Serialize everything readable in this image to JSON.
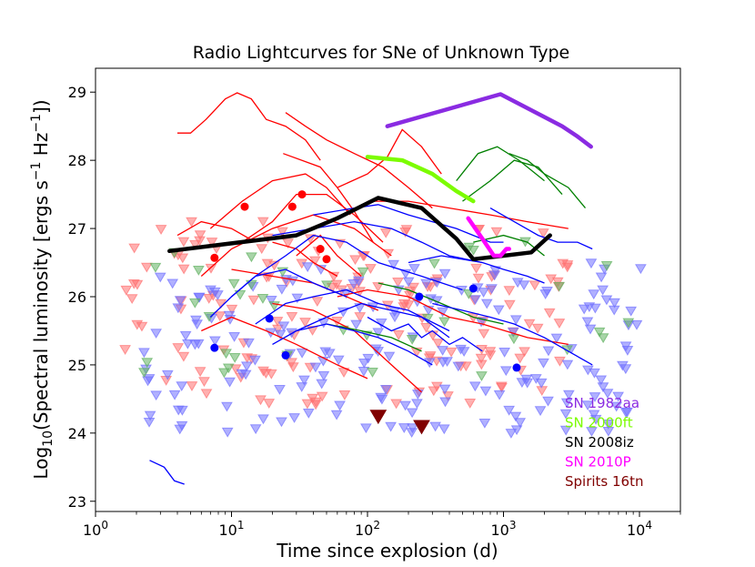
{
  "chart_data": {
    "type": "line",
    "title": "Radio Lightcurves for SNe of Unknown Type",
    "xlabel": "Time since explosion (d)",
    "ylabel_prefix": "Log",
    "ylabel_sub": "10",
    "ylabel_main": "(Spectral luminosity [ergs s",
    "ylabel_sup1": "−1",
    "ylabel_mid": " Hz",
    "ylabel_sup2": "−1",
    "ylabel_end": "])",
    "x_scale": "log",
    "xlim": [
      1,
      20000
    ],
    "ylim": [
      22.85,
      29.35
    ],
    "x_tick_labels": [
      {
        "value": 1,
        "base": "10",
        "exp": "0"
      },
      {
        "value": 10,
        "base": "10",
        "exp": "1"
      },
      {
        "value": 100,
        "base": "10",
        "exp": "2"
      },
      {
        "value": 1000,
        "base": "10",
        "exp": "3"
      },
      {
        "value": 10000,
        "base": "10",
        "exp": "4"
      }
    ],
    "y_ticks": [
      23,
      24,
      25,
      26,
      27,
      28,
      29
    ],
    "legend_position": "bottom-right",
    "highlighted": [
      {
        "name": "SN 1982aa",
        "color": "#8a2be2",
        "x": [
          140,
          950,
          2700,
          3500,
          4400
        ],
        "y": [
          28.5,
          28.97,
          28.5,
          28.35,
          28.2
        ]
      },
      {
        "name": "SN 2000ft",
        "color": "#7cfc00",
        "x": [
          100,
          180,
          300,
          450,
          600
        ],
        "y": [
          28.05,
          28.0,
          27.8,
          27.55,
          27.4
        ]
      },
      {
        "name": "SN 2008iz",
        "color": "#000000",
        "x": [
          3.5,
          30,
          60,
          120,
          250,
          450,
          600,
          1000,
          1600,
          2200
        ],
        "y": [
          26.67,
          26.9,
          27.15,
          27.45,
          27.3,
          26.85,
          26.55,
          26.6,
          26.65,
          26.9
        ]
      },
      {
        "name": "SN 2010P",
        "color": "#ff00ff",
        "x": [
          550,
          700,
          850,
          950,
          1050,
          1100
        ],
        "y": [
          27.15,
          26.85,
          26.6,
          26.6,
          26.7,
          26.7
        ]
      },
      {
        "name": "Spirits 16tn",
        "color": "#800000",
        "upper_limits": [
          [
            120,
            24.25
          ],
          [
            250,
            24.1
          ]
        ]
      }
    ],
    "background_series": [
      {
        "group": "type-red",
        "color": "#ff0000",
        "x": [
          24,
          45,
          60,
          80,
          110
        ],
        "y": [
          28.1,
          27.9,
          27.6,
          27.25,
          26.8
        ]
      },
      {
        "group": "type-red",
        "color": "#ff0000",
        "x": [
          4,
          5,
          6.5,
          9,
          11,
          14,
          18,
          25,
          35,
          45
        ],
        "y": [
          28.4,
          28.4,
          28.6,
          28.9,
          28.99,
          28.9,
          28.6,
          28.5,
          28.3,
          28.0
        ]
      },
      {
        "group": "type-red",
        "color": "#ff0000",
        "x": [
          25,
          35,
          50,
          80,
          130,
          200,
          300
        ],
        "y": [
          28.7,
          28.5,
          28.3,
          28.1,
          27.9,
          27.6,
          27.3
        ]
      },
      {
        "group": "type-red",
        "color": "#ff0000",
        "x": [
          60,
          100,
          140,
          180,
          250,
          350
        ],
        "y": [
          27.6,
          27.8,
          28.05,
          28.45,
          28.2,
          27.8
        ]
      },
      {
        "group": "type-red",
        "color": "#ff0000",
        "x": [
          7,
          12,
          20,
          35,
          50,
          75
        ],
        "y": [
          27.0,
          27.4,
          27.7,
          27.8,
          27.6,
          27.2
        ]
      },
      {
        "group": "type-red",
        "color": "#ff0000",
        "x": [
          12,
          20,
          30,
          50,
          80,
          130
        ],
        "y": [
          26.8,
          27.1,
          27.5,
          27.5,
          27.2,
          26.8
        ]
      },
      {
        "group": "type-red",
        "color": "#ff0000",
        "x": [
          100,
          200,
          400,
          800,
          1500,
          3000
        ],
        "y": [
          27.4,
          27.4,
          27.3,
          27.2,
          27.1,
          27.0
        ]
      },
      {
        "group": "type-red",
        "color": "#ff0000",
        "x": [
          6,
          10,
          20,
          40,
          80,
          150
        ],
        "y": [
          26.3,
          26.7,
          27.0,
          27.2,
          27.0,
          26.6
        ]
      },
      {
        "group": "type-red",
        "color": "#ff0000",
        "x": [
          20,
          30,
          40,
          60
        ],
        "y": [
          26.8,
          26.7,
          26.5,
          26.3
        ]
      },
      {
        "group": "type-red",
        "color": "#ff0000",
        "x": [
          30,
          45,
          60,
          90
        ],
        "y": [
          26.6,
          26.9,
          26.6,
          26.3
        ]
      },
      {
        "group": "type-red",
        "color": "#ff0000",
        "x": [
          10,
          20,
          40,
          70,
          120
        ],
        "y": [
          26.4,
          26.3,
          26.2,
          26.0,
          25.8
        ]
      },
      {
        "group": "type-red",
        "color": "#ff0000",
        "x": [
          6,
          10,
          18,
          30,
          60,
          100
        ],
        "y": [
          25.5,
          25.7,
          25.5,
          25.3,
          25.0,
          24.8
        ]
      },
      {
        "group": "type-red",
        "color": "#ff0000",
        "x": [
          20,
          40,
          80,
          150,
          250
        ],
        "y": [
          25.9,
          25.8,
          25.5,
          25.0,
          24.6
        ]
      },
      {
        "group": "type-red",
        "color": "#ff0000",
        "x": [
          60,
          100,
          200,
          400,
          700,
          1500,
          3000
        ],
        "y": [
          26.0,
          26.1,
          26.0,
          25.7,
          25.6,
          25.4,
          25.3
        ]
      },
      {
        "group": "type-red",
        "color": "#ff0000",
        "x": [
          4,
          6,
          10,
          15
        ],
        "y": [
          26.9,
          27.1,
          27.0,
          26.8
        ]
      },
      {
        "group": "type-green",
        "color": "#008000",
        "x": [
          450,
          650,
          900,
          1300,
          2000
        ],
        "y": [
          27.7,
          28.1,
          28.2,
          28.0,
          27.7
        ]
      },
      {
        "group": "type-green",
        "color": "#008000",
        "x": [
          500,
          800,
          1200,
          1800,
          2700
        ],
        "y": [
          27.4,
          27.7,
          28.0,
          27.9,
          27.5
        ]
      },
      {
        "group": "type-green",
        "color": "#008000",
        "x": [
          1100,
          1500,
          2000,
          3000,
          4000
        ],
        "y": [
          28.1,
          28.0,
          27.8,
          27.6,
          27.3
        ]
      },
      {
        "group": "type-green",
        "color": "#008000",
        "x": [
          600,
          1000,
          1500,
          2000
        ],
        "y": [
          26.8,
          26.9,
          26.8,
          26.6
        ]
      },
      {
        "group": "type-green",
        "color": "#008000",
        "x": [
          120,
          200,
          350,
          600,
          1000
        ],
        "y": [
          26.2,
          26.1,
          25.9,
          25.7,
          25.6
        ]
      },
      {
        "group": "type-green",
        "color": "#008000",
        "x": [
          50,
          90,
          150,
          250
        ],
        "y": [
          25.6,
          25.5,
          25.4,
          25.2
        ]
      },
      {
        "group": "type-blue",
        "color": "#0000ff",
        "x": [
          40,
          80,
          120,
          200,
          300,
          450,
          600,
          800,
          1000
        ],
        "y": [
          27.2,
          27.3,
          27.35,
          27.2,
          27.1,
          27.0,
          26.9,
          26.8,
          26.8
        ]
      },
      {
        "group": "type-blue",
        "color": "#0000ff",
        "x": [
          20,
          40,
          80,
          150,
          250,
          400,
          700
        ],
        "y": [
          26.9,
          27.0,
          27.1,
          27.0,
          26.8,
          26.6,
          26.5
        ]
      },
      {
        "group": "type-blue",
        "color": "#0000ff",
        "x": [
          10,
          15,
          25,
          40,
          70,
          120,
          250,
          500
        ],
        "y": [
          26.0,
          26.3,
          26.6,
          26.9,
          26.8,
          26.5,
          26.3,
          26.1
        ]
      },
      {
        "group": "type-blue",
        "color": "#0000ff",
        "x": [
          7,
          10,
          15,
          25,
          40,
          70
        ],
        "y": [
          25.7,
          26.0,
          26.3,
          26.4,
          26.2,
          26.0
        ]
      },
      {
        "group": "type-blue",
        "color": "#0000ff",
        "x": [
          15,
          25,
          40,
          70,
          120,
          200,
          400
        ],
        "y": [
          25.6,
          25.9,
          26.0,
          26.1,
          25.9,
          25.8,
          25.5
        ]
      },
      {
        "group": "type-blue",
        "color": "#0000ff",
        "x": [
          30,
          50,
          90,
          150,
          250,
          400
        ],
        "y": [
          25.5,
          25.7,
          25.9,
          25.8,
          25.7,
          25.4
        ]
      },
      {
        "group": "type-blue",
        "color": "#0000ff",
        "x": [
          20,
          30,
          50,
          80,
          120,
          200,
          300
        ],
        "y": [
          25.3,
          25.5,
          25.6,
          25.5,
          25.4,
          25.2,
          25.0
        ]
      },
      {
        "group": "type-blue",
        "color": "#0000ff",
        "x": [
          100,
          150,
          200,
          250,
          300,
          400,
          500,
          700
        ],
        "y": [
          25.7,
          25.5,
          25.6,
          25.4,
          25.5,
          25.3,
          25.4,
          25.2
        ]
      },
      {
        "group": "type-blue",
        "color": "#0000ff",
        "x": [
          300,
          500,
          800,
          1200,
          2000,
          3000,
          4500
        ],
        "y": [
          25.9,
          25.8,
          25.7,
          25.6,
          25.4,
          25.2,
          25.0
        ]
      },
      {
        "group": "type-blue",
        "color": "#0000ff",
        "x": [
          800,
          1200,
          1800,
          2500,
          3500,
          4500
        ],
        "y": [
          27.3,
          27.1,
          26.9,
          26.8,
          26.8,
          26.7
        ]
      },
      {
        "group": "type-blue",
        "color": "#0000ff",
        "x": [
          200,
          350,
          500,
          700,
          1000,
          1500,
          2000
        ],
        "y": [
          26.5,
          26.6,
          26.55,
          26.5,
          26.4,
          26.3,
          26.2
        ]
      },
      {
        "group": "type-blue",
        "color": "#0000ff",
        "x": [
          2.5,
          3.2,
          3.8,
          4.5
        ],
        "y": [
          23.6,
          23.5,
          23.3,
          23.25
        ]
      }
    ],
    "detections": [
      {
        "group": "type-red",
        "color": "#ff0000",
        "points": [
          [
            7.5,
            26.57
          ],
          [
            12.5,
            27.32
          ],
          [
            33,
            27.5
          ],
          [
            28,
            27.32
          ],
          [
            45,
            26.7
          ],
          [
            50,
            26.55
          ]
        ]
      },
      {
        "group": "type-blue",
        "color": "#0000ff",
        "points": [
          [
            7.5,
            25.25
          ],
          [
            19,
            25.68
          ],
          [
            25,
            25.14
          ],
          [
            240,
            26.0
          ],
          [
            600,
            26.12
          ],
          [
            1250,
            24.96
          ]
        ]
      }
    ],
    "upper_limits_groups": [
      {
        "group": "type-red",
        "color": "#ff7070",
        "count": 170
      },
      {
        "group": "type-blue",
        "color": "#7070ff",
        "count": 210
      },
      {
        "group": "type-green",
        "color": "#60b060",
        "count": 40
      }
    ],
    "legend": [
      {
        "label": "SN 1982aa",
        "color": "#8a2be2"
      },
      {
        "label": "SN 2000ft",
        "color": "#7cfc00"
      },
      {
        "label": "SN 2008iz",
        "color": "#000000"
      },
      {
        "label": "SN 2010P",
        "color": "#ff00ff"
      },
      {
        "label": "Spirits 16tn",
        "color": "#800000"
      }
    ]
  }
}
